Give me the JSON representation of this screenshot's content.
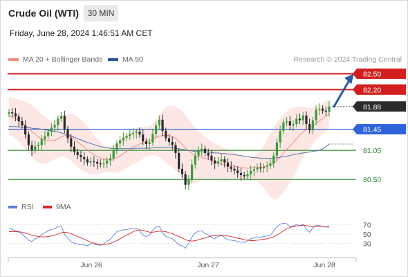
{
  "header": {
    "title": "Crude Oil (WTI)",
    "timeframe": "30 MIN",
    "datetime": "Friday, June 28, 2024 1:46:51 AM CET"
  },
  "legend": {
    "bollinger": {
      "label": "MA 20 + Bollinger Bands",
      "color": "#f28b82"
    },
    "ma50": {
      "label": "MA 50",
      "color": "#2b5aa0"
    },
    "credit": "Research © 2024 Trading Central"
  },
  "indicator_legend": {
    "rsi": {
      "label": "RSI",
      "color": "#5b7fd6"
    },
    "ma9": {
      "label": "9MA",
      "color": "#d92525"
    }
  },
  "x_axis": {
    "labels": [
      "Jun 26",
      "Jun 27",
      "Jun 28"
    ]
  },
  "levels": [
    {
      "value": "82.50",
      "kind": "resistance",
      "color": "#d11f1f"
    },
    {
      "value": "82.20",
      "kind": "resistance",
      "color": "#d11f1f"
    },
    {
      "value": "81.88",
      "kind": "last",
      "color": "#2b2b2b"
    },
    {
      "value": "81.45",
      "kind": "pivot",
      "color": "#2f64d8"
    },
    {
      "value": "81.05",
      "kind": "support",
      "color": "#2e8b2e"
    },
    {
      "value": "80.50",
      "kind": "support",
      "color": "#2e8b2e"
    }
  ],
  "rsi_axis": {
    "labels": [
      "70",
      "50",
      "30"
    ]
  },
  "chart_data": {
    "type": "candlestick",
    "timeframe": "30 MIN",
    "ylim": [
      80.2,
      82.65
    ],
    "x_ticks": [
      "Jun 26",
      "Jun 27",
      "Jun 28"
    ],
    "close": [
      81.77,
      81.75,
      81.69,
      81.6,
      81.52,
      81.35,
      81.15,
      81.05,
      81.13,
      81.15,
      81.26,
      81.32,
      81.4,
      81.48,
      81.53,
      81.65,
      81.7,
      81.45,
      81.28,
      81.12,
      81.02,
      80.96,
      80.92,
      80.88,
      80.82,
      80.84,
      80.83,
      80.8,
      80.79,
      80.8,
      80.86,
      80.9,
      81.05,
      81.18,
      81.24,
      81.29,
      81.32,
      81.36,
      81.38,
      81.4,
      81.35,
      81.22,
      81.17,
      81.2,
      81.36,
      81.52,
      81.63,
      81.42,
      81.28,
      81.21,
      81.15,
      81.0,
      80.7,
      80.6,
      80.4,
      80.5,
      80.78,
      80.95,
      81.05,
      81.08,
      81.0,
      80.95,
      80.86,
      80.8,
      80.84,
      80.88,
      80.82,
      80.74,
      80.7,
      80.67,
      80.62,
      80.58,
      80.56,
      80.6,
      80.66,
      80.69,
      80.72,
      80.71,
      80.74,
      80.76,
      80.8,
      80.95,
      81.2,
      81.42,
      81.58,
      81.6,
      81.52,
      81.55,
      81.65,
      81.62,
      81.71,
      81.55,
      81.43,
      81.62,
      81.82,
      81.84,
      81.8,
      81.78,
      81.88
    ],
    "ma20": [
      81.7,
      81.68,
      81.65,
      81.62,
      81.57,
      81.52,
      81.47,
      81.41,
      81.36,
      81.31,
      81.27,
      81.24,
      81.23,
      81.23,
      81.24,
      81.27,
      81.31,
      81.33,
      81.32,
      81.3,
      81.26,
      81.21,
      81.16,
      81.11,
      81.06,
      81.01,
      80.97,
      80.93,
      80.91,
      80.88,
      80.88,
      80.88,
      80.89,
      80.91,
      80.95,
      80.99,
      81.03,
      81.07,
      81.11,
      81.14,
      81.17,
      81.19,
      81.21,
      81.23,
      81.26,
      81.29,
      81.32,
      81.33,
      81.34,
      81.33,
      81.31,
      81.27,
      81.22,
      81.16,
      81.1,
      81.04,
      80.99,
      80.95,
      80.93,
      80.92,
      80.9,
      80.88,
      80.86,
      80.83,
      80.81,
      80.79,
      80.78,
      80.77,
      80.76,
      80.75,
      80.73,
      80.72,
      80.72,
      80.71,
      80.72,
      80.72,
      80.73,
      80.73,
      80.74,
      80.75,
      80.77,
      80.8,
      80.85,
      80.92,
      81.0,
      81.07,
      81.13,
      81.2,
      81.27,
      81.34,
      81.4,
      81.44,
      81.47,
      81.51,
      81.56,
      81.61,
      81.65,
      81.7,
      81.73
    ],
    "ma50": [
      81.5,
      81.5,
      81.5,
      81.49,
      81.49,
      81.48,
      81.48,
      81.47,
      81.46,
      81.46,
      81.45,
      81.44,
      81.43,
      81.42,
      81.41,
      81.4,
      81.38,
      81.36,
      81.34,
      81.32,
      81.3,
      81.27,
      81.25,
      81.22,
      81.2,
      81.18,
      81.16,
      81.14,
      81.12,
      81.11,
      81.1,
      81.09,
      81.08,
      81.08,
      81.08,
      81.08,
      81.08,
      81.08,
      81.08,
      81.09,
      81.09,
      81.09,
      81.09,
      81.09,
      81.1,
      81.1,
      81.11,
      81.11,
      81.11,
      81.11,
      81.1,
      81.09,
      81.08,
      81.07,
      81.06,
      81.05,
      81.04,
      81.03,
      81.03,
      81.02,
      81.02,
      81.02,
      81.01,
      81.0,
      81.0,
      80.99,
      80.99,
      80.98,
      80.98,
      80.97,
      80.96,
      80.95,
      80.94,
      80.93,
      80.92,
      80.91,
      80.91,
      80.9,
      80.9,
      80.9,
      80.9,
      80.9,
      80.91,
      80.92,
      80.93,
      80.94,
      80.95,
      80.97,
      80.98,
      80.99,
      81.0,
      81.01,
      81.02,
      81.03,
      81.04,
      81.05,
      81.08,
      81.12,
      81.17
    ],
    "bb_width": [
      0.35,
      0.36,
      0.38,
      0.4,
      0.42,
      0.45,
      0.48,
      0.5,
      0.5,
      0.49,
      0.47,
      0.44,
      0.41,
      0.38,
      0.36,
      0.36,
      0.38,
      0.4,
      0.42,
      0.44,
      0.46,
      0.47,
      0.47,
      0.46,
      0.44,
      0.42,
      0.38,
      0.34,
      0.3,
      0.26,
      0.24,
      0.24,
      0.26,
      0.28,
      0.3,
      0.31,
      0.32,
      0.32,
      0.32,
      0.32,
      0.32,
      0.3,
      0.28,
      0.28,
      0.3,
      0.34,
      0.4,
      0.46,
      0.52,
      0.56,
      0.58,
      0.6,
      0.62,
      0.63,
      0.62,
      0.6,
      0.56,
      0.52,
      0.48,
      0.44,
      0.4,
      0.38,
      0.36,
      0.35,
      0.34,
      0.33,
      0.32,
      0.3,
      0.28,
      0.26,
      0.24,
      0.22,
      0.2,
      0.2,
      0.21,
      0.22,
      0.26,
      0.32,
      0.4,
      0.5,
      0.6,
      0.68,
      0.72,
      0.74,
      0.74,
      0.72,
      0.7,
      0.66,
      0.6,
      0.54,
      0.48,
      0.42,
      0.38,
      0.35,
      0.32,
      0.3,
      0.29,
      0.28,
      0.28
    ],
    "annotation": {
      "type": "arrow",
      "direction": "up",
      "target": "82.50"
    },
    "rsi": {
      "ylim": [
        0,
        100
      ],
      "ticks": [
        70,
        50,
        30
      ],
      "rsi": [
        62,
        60,
        57,
        54,
        50,
        44,
        37,
        34,
        40,
        42,
        49,
        53,
        57,
        60,
        61,
        66,
        67,
        50,
        41,
        34,
        30,
        29,
        28,
        27,
        25,
        30,
        29,
        27,
        26,
        29,
        35,
        39,
        48,
        55,
        57,
        59,
        60,
        61,
        62,
        62,
        57,
        47,
        45,
        48,
        58,
        65,
        67,
        52,
        45,
        42,
        40,
        34,
        27,
        25,
        20,
        30,
        44,
        52,
        56,
        57,
        51,
        48,
        43,
        40,
        45,
        47,
        43,
        38,
        37,
        36,
        34,
        33,
        32,
        36,
        40,
        42,
        44,
        43,
        45,
        46,
        48,
        56,
        66,
        71,
        73,
        72,
        66,
        67,
        70,
        68,
        71,
        60,
        54,
        63,
        69,
        68,
        66,
        65,
        67
      ],
      "ma9": [
        55,
        55,
        55,
        55,
        54,
        52,
        50,
        48,
        46,
        45,
        44,
        44,
        45,
        46,
        48,
        50,
        53,
        54,
        53,
        51,
        48,
        45,
        42,
        39,
        36,
        33,
        31,
        29,
        28,
        28,
        29,
        30,
        33,
        36,
        40,
        44,
        48,
        51,
        55,
        58,
        59,
        58,
        56,
        54,
        54,
        55,
        56,
        56,
        55,
        53,
        51,
        48,
        45,
        42,
        38,
        36,
        35,
        36,
        38,
        40,
        42,
        44,
        46,
        47,
        48,
        48,
        47,
        46,
        45,
        43,
        41,
        40,
        38,
        37,
        36,
        36,
        37,
        38,
        39,
        40,
        42,
        44,
        48,
        52,
        57,
        61,
        64,
        66,
        67,
        68,
        69,
        68,
        67,
        66,
        66,
        66,
        66,
        65,
        65
      ]
    }
  }
}
